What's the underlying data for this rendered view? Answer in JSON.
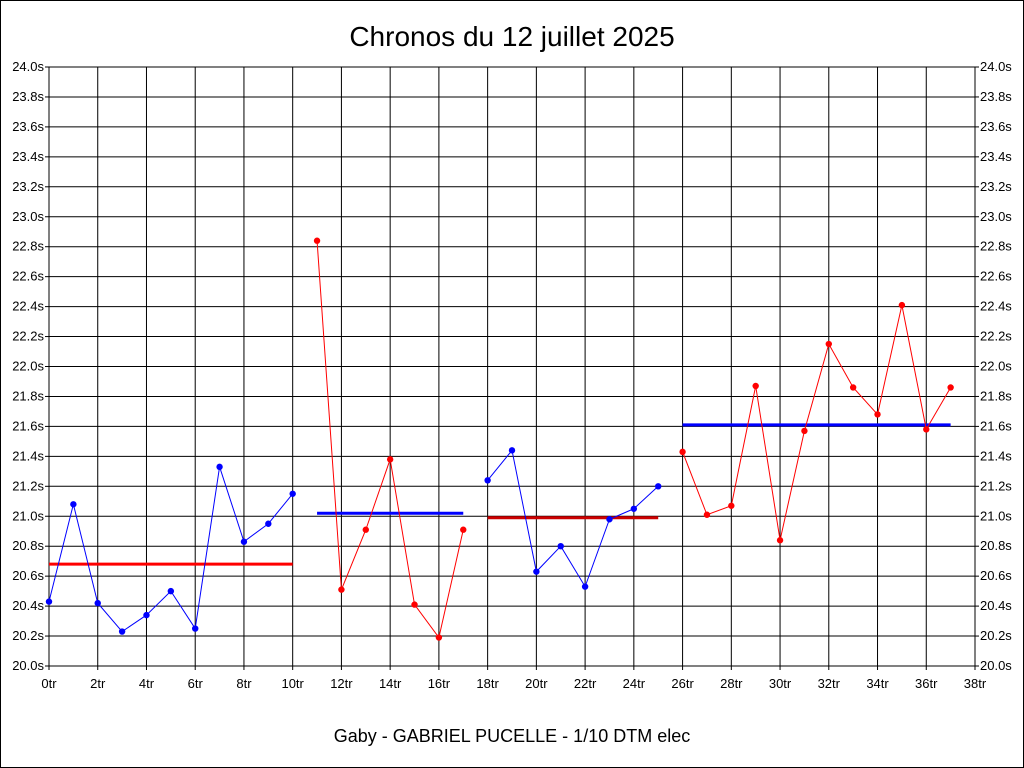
{
  "chart_data": {
    "type": "line",
    "title": "Chronos du 12 juillet 2025",
    "subtitle": "Gaby - GABRIEL PUCELLE - 1/10 DTM elec",
    "ylim": [
      20.0,
      24.0
    ],
    "xlim": [
      0,
      38
    ],
    "y_ticks": [
      "20.0s",
      "20.2s",
      "20.4s",
      "20.6s",
      "20.8s",
      "21.0s",
      "21.2s",
      "21.4s",
      "21.6s",
      "21.8s",
      "22.0s",
      "22.2s",
      "22.4s",
      "22.6s",
      "22.8s",
      "23.0s",
      "23.2s",
      "23.4s",
      "23.6s",
      "23.8s",
      "24.0s"
    ],
    "x_ticks": [
      "0tr",
      "2tr",
      "4tr",
      "6tr",
      "8tr",
      "10tr",
      "12tr",
      "14tr",
      "16tr",
      "18tr",
      "20tr",
      "22tr",
      "24tr",
      "26tr",
      "28tr",
      "30tr",
      "32tr",
      "34tr",
      "36tr",
      "38tr"
    ],
    "grid": true,
    "series": [
      {
        "color": "#0000ff",
        "x": [
          0,
          1,
          2,
          3,
          4,
          5,
          6,
          7,
          8,
          9,
          10
        ],
        "y": [
          20.43,
          21.08,
          20.42,
          20.23,
          20.34,
          20.5,
          20.25,
          21.33,
          20.83,
          20.95,
          21.15
        ]
      },
      {
        "color": "#ff0000",
        "x": [
          11,
          12,
          13,
          14,
          15,
          16,
          17
        ],
        "y": [
          22.84,
          20.51,
          20.91,
          21.38,
          20.41,
          20.19,
          20.91
        ]
      },
      {
        "color": "#0000ff",
        "x": [
          18,
          19,
          20,
          21,
          22,
          23,
          24,
          25
        ],
        "y": [
          21.24,
          21.44,
          20.63,
          20.8,
          20.53,
          20.98,
          21.05,
          21.2
        ]
      },
      {
        "color": "#ff0000",
        "x": [
          26,
          27,
          28,
          29,
          30,
          31,
          32,
          33,
          34,
          35,
          36,
          37
        ],
        "y": [
          21.43,
          21.01,
          21.07,
          21.87,
          20.84,
          21.57,
          22.15,
          21.86,
          21.68,
          22.41,
          21.58,
          21.86
        ]
      }
    ],
    "averages": [
      {
        "color": "#ff0000",
        "x_start": 0,
        "x_end": 10,
        "y": 20.68
      },
      {
        "color": "#0000ff",
        "x_start": 11,
        "x_end": 17,
        "y": 21.02
      },
      {
        "color": "#cc0000",
        "x_start": 18,
        "x_end": 25,
        "y": 20.99
      },
      {
        "color": "#0000ff",
        "x_start": 26,
        "x_end": 37,
        "y": 21.61
      }
    ]
  }
}
